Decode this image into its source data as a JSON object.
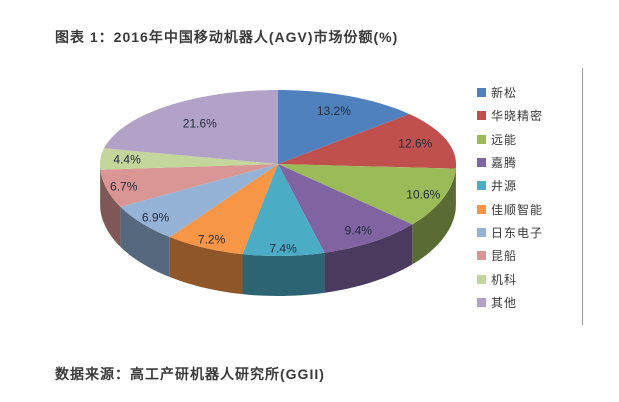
{
  "title": "图表 1：2016年中国移动机器人(AGV)市场份额(%)",
  "source": "数据来源：高工产研机器人研究所(GGII)",
  "chart_data": {
    "type": "pie",
    "style": "3d",
    "title": "2016年中国移动机器人(AGV)市场份额(%)",
    "legend_position": "right",
    "start_angle_deg": -90,
    "direction": "clockwise",
    "label_color": "#232c3e",
    "series": [
      {
        "label": "新松",
        "value": 13.2,
        "data_label": "13.2%",
        "color": "#4F81BD"
      },
      {
        "label": "华晓精密",
        "value": 12.6,
        "data_label": "12.6%",
        "color": "#C0504D"
      },
      {
        "label": "远能",
        "value": 10.6,
        "data_label": "10.6%",
        "color": "#9BBB59"
      },
      {
        "label": "嘉腾",
        "value": 9.4,
        "data_label": "9.4%",
        "color": "#8064A2"
      },
      {
        "label": "井源",
        "value": 7.4,
        "data_label": "7.4%",
        "color": "#4BACC6"
      },
      {
        "label": "佳顺智能",
        "value": 7.2,
        "data_label": "7.2%",
        "color": "#F79646"
      },
      {
        "label": "日东电子",
        "value": 6.9,
        "data_label": "6.9%",
        "color": "#95B3D7"
      },
      {
        "label": "昆船",
        "value": 6.7,
        "data_label": "6.7%",
        "color": "#D99694"
      },
      {
        "label": "机科",
        "value": 4.4,
        "data_label": "4.4%",
        "color": "#C3D69B"
      },
      {
        "label": "其他",
        "value": 21.6,
        "data_label": "21.6%",
        "color": "#B3A2C7"
      }
    ]
  }
}
